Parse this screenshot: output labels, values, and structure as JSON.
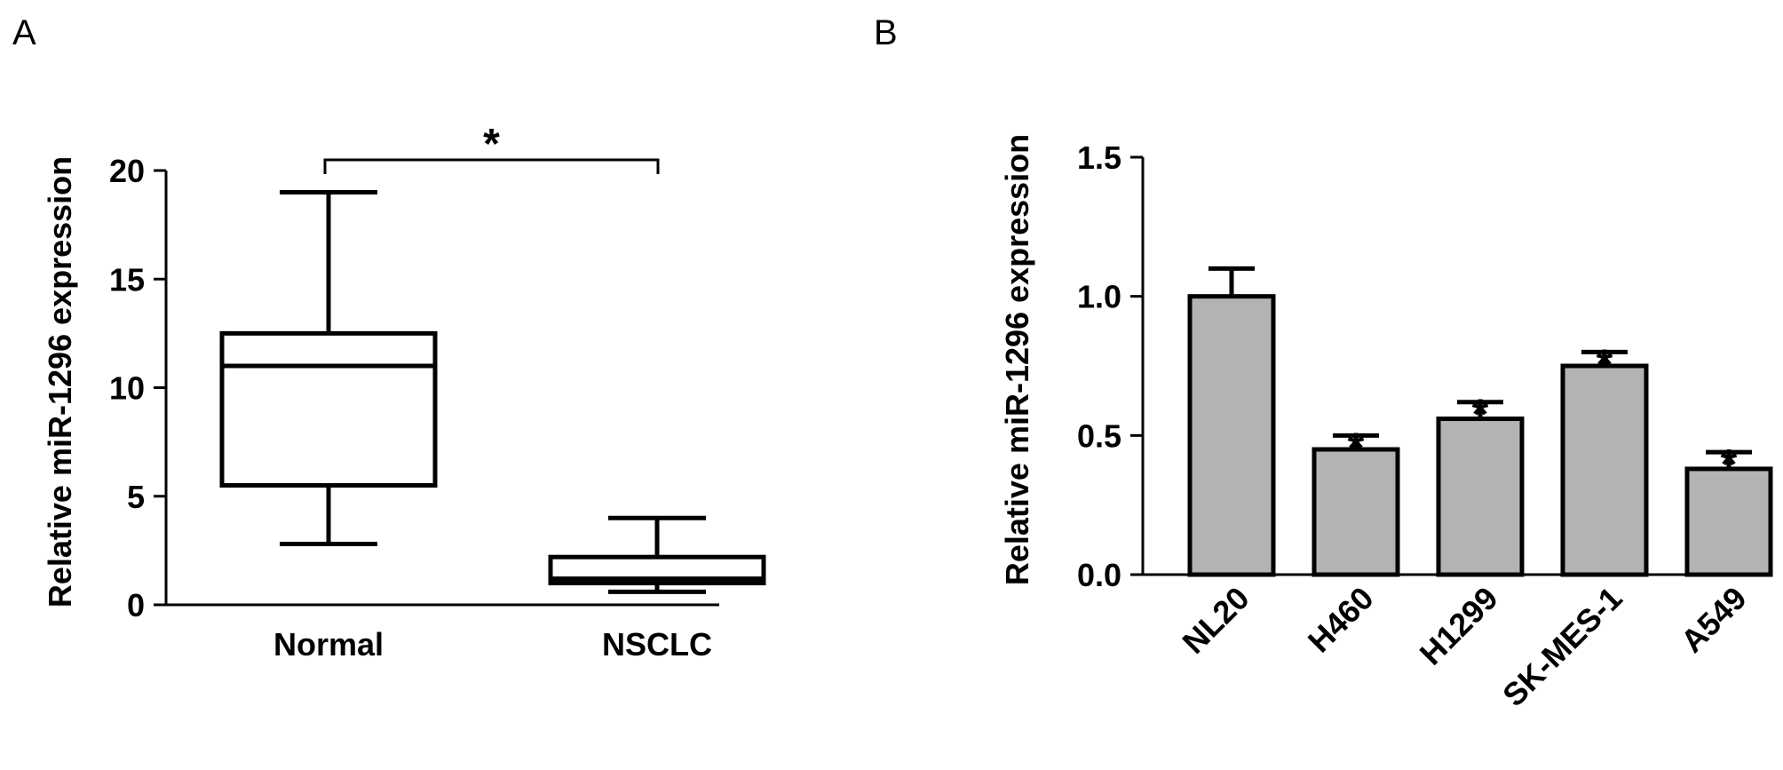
{
  "chart_data": [
    {
      "panel_label": "A",
      "type": "box",
      "ylabel": "Relative miR-1296 expression",
      "categories": [
        "Normal",
        "NSCLC"
      ],
      "ylim": [
        0,
        20
      ],
      "yticks": [
        "0",
        "5",
        "10",
        "15",
        "20"
      ],
      "yticks_values": [
        0,
        5,
        10,
        15,
        20
      ],
      "boxes": [
        {
          "category": "Normal",
          "min": 2.8,
          "q1": 5.5,
          "median": 11.0,
          "q3": 12.5,
          "max": 19.0
        },
        {
          "category": "NSCLC",
          "min": 0.6,
          "q1": 1.0,
          "median": 1.2,
          "q3": 2.2,
          "max": 4.0
        }
      ],
      "significance": [
        {
          "between": [
            "Normal",
            "NSCLC"
          ],
          "label": "*"
        }
      ],
      "grid": false
    },
    {
      "panel_label": "B",
      "type": "bar",
      "ylabel": "Relative miR-1296 expression",
      "categories": [
        "NL20",
        "H460",
        "H1299",
        "SK-MES-1",
        "A549"
      ],
      "values": [
        1.0,
        0.45,
        0.56,
        0.75,
        0.38
      ],
      "errors": [
        0.1,
        0.05,
        0.06,
        0.05,
        0.06
      ],
      "annotations": [
        "",
        "*",
        "*",
        "*",
        "*"
      ],
      "ylim": [
        0,
        1.5
      ],
      "yticks": [
        "0.0",
        "0.5",
        "1.0",
        "1.5"
      ],
      "yticks_values": [
        0,
        0.5,
        1.0,
        1.5
      ],
      "bar_color": "#b3b3b3",
      "grid": false
    }
  ]
}
